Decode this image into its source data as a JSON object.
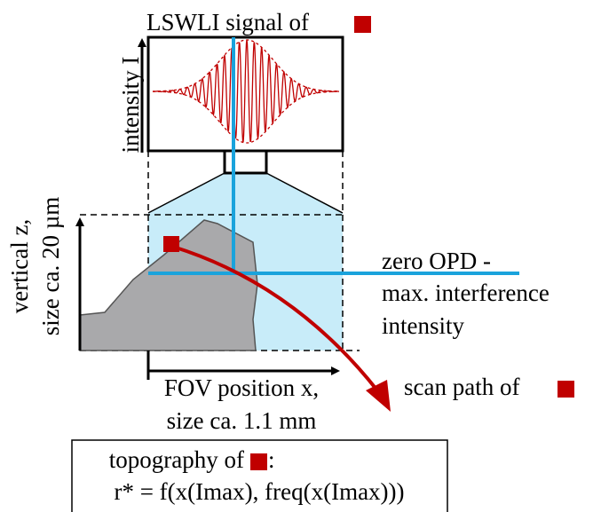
{
  "signal": {
    "title": "LSWLI signal of",
    "axis_label": "intensity I"
  },
  "vertical_axis": {
    "line1": "vertical z,",
    "line2": "size ca. 20 µm"
  },
  "horizontal_axis": {
    "line1": "FOV position x,",
    "line2": "size ca. 1.1 mm"
  },
  "zero_opd": {
    "line1": "zero OPD -",
    "line2": "max. interference",
    "line3": "intensity"
  },
  "scan_path": {
    "label": "scan path of"
  },
  "topography": {
    "label": "topography of",
    "suffix": ":",
    "formula": "r* = f(x(Imax), freq(x(Imax)))"
  }
}
